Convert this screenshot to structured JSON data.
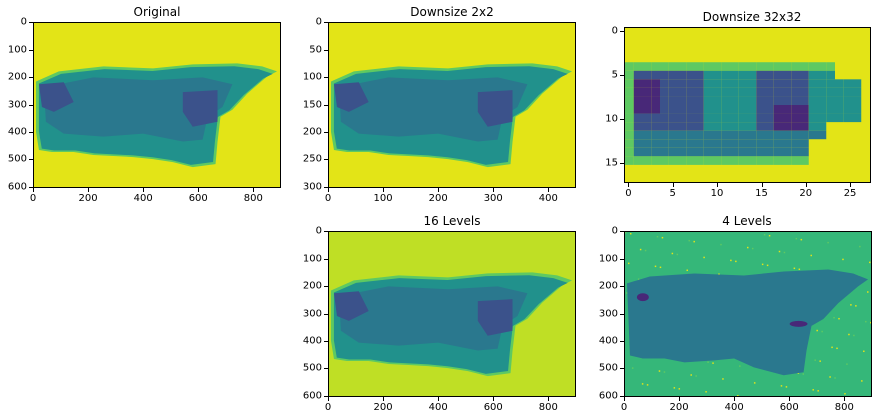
{
  "panels": [
    {
      "title": "Original",
      "xticks": [
        "0",
        "200",
        "400",
        "600",
        "800"
      ],
      "yticks": [
        "0",
        "100",
        "200",
        "300",
        "400",
        "500",
        "600"
      ],
      "image": "original"
    },
    {
      "title": "Downsize 2x2",
      "xticks": [
        "0",
        "100",
        "200",
        "300",
        "400"
      ],
      "yticks": [
        "0",
        "50",
        "100",
        "150",
        "200",
        "250",
        "300"
      ],
      "image": "original"
    },
    {
      "title": "Downsize 32x32",
      "xticks": [
        "0",
        "5",
        "10",
        "15",
        "20",
        "25"
      ],
      "yticks": [
        "0",
        "5",
        "10",
        "15"
      ],
      "image": "pixelated"
    },
    {
      "title": "16 Levels",
      "xticks": [
        "0",
        "200",
        "400",
        "600",
        "800"
      ],
      "yticks": [
        "0",
        "100",
        "200",
        "300",
        "400",
        "500",
        "600"
      ],
      "image": "levels16"
    },
    {
      "title": "4 Levels",
      "xticks": [
        "0",
        "200",
        "400",
        "600",
        "800"
      ],
      "yticks": [
        "0",
        "100",
        "200",
        "300",
        "400",
        "500",
        "600"
      ],
      "image": "levels4"
    }
  ],
  "colors": {
    "background_yellow": "#e3e417",
    "background_16": "#bfdf25",
    "background_4": "#35b779",
    "tissue_teal": "#2a788e",
    "tissue_blue": "#3b528b",
    "tissue_dark": "#482878",
    "tissue_light": "#21918c",
    "edge_green": "#5ec962"
  }
}
